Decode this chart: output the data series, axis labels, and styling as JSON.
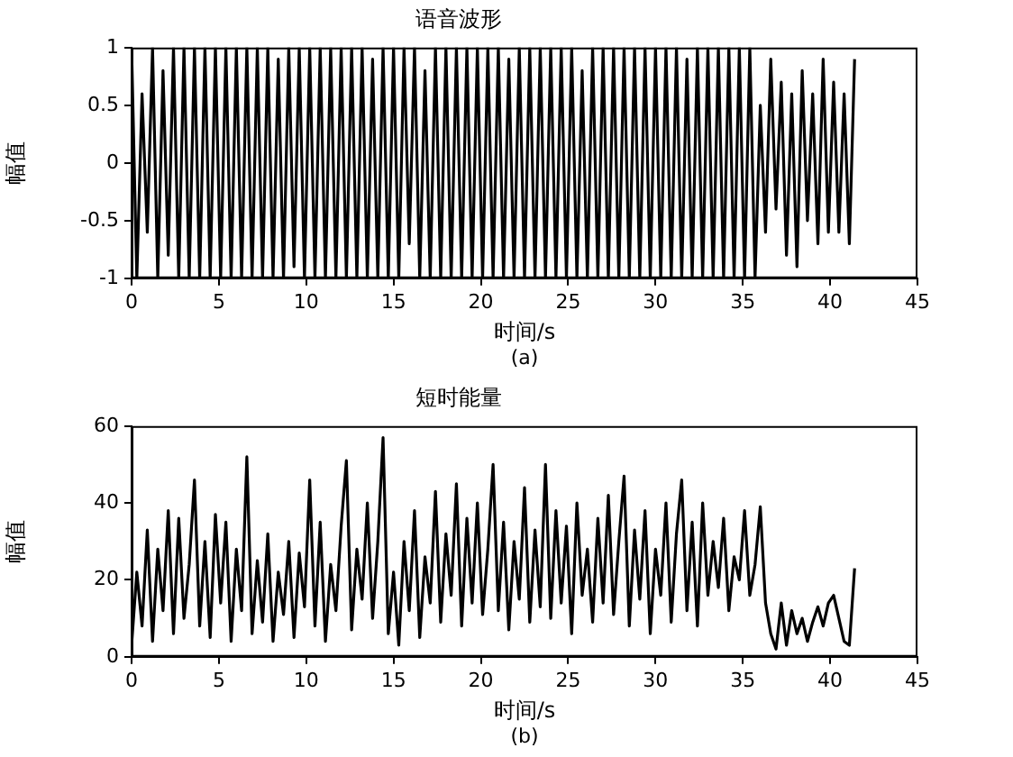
{
  "chart_data": [
    {
      "type": "line",
      "title": "语音波形",
      "xlabel": "时间/s",
      "ylabel": "幅值",
      "annotations": [
        "(a)"
      ],
      "x": [
        0,
        0.3,
        0.6,
        0.9,
        1.2,
        1.5,
        1.8,
        2.1,
        2.4,
        2.7,
        3,
        3.3,
        3.6,
        3.9,
        4.2,
        4.5,
        4.8,
        5.1,
        5.4,
        5.7,
        6,
        6.3,
        6.6,
        6.9,
        7.2,
        7.5,
        7.8,
        8.1,
        8.4,
        8.7,
        9,
        9.3,
        9.6,
        9.9,
        10.2,
        10.5,
        10.8,
        11.1,
        11.4,
        11.7,
        12,
        12.3,
        12.6,
        12.9,
        13.2,
        13.5,
        13.8,
        14.1,
        14.4,
        14.7,
        15,
        15.3,
        15.6,
        15.9,
        16.2,
        16.5,
        16.8,
        17.1,
        17.4,
        17.7,
        18,
        18.3,
        18.6,
        18.9,
        19.2,
        19.5,
        19.8,
        20.1,
        20.4,
        20.7,
        21,
        21.3,
        21.6,
        21.9,
        22.2,
        22.5,
        22.8,
        23.1,
        23.4,
        23.7,
        24,
        24.3,
        24.6,
        24.9,
        25.2,
        25.5,
        25.8,
        26.1,
        26.4,
        26.7,
        27,
        27.3,
        27.6,
        27.9,
        28.2,
        28.5,
        28.8,
        29.1,
        29.4,
        29.7,
        30,
        30.3,
        30.6,
        30.9,
        31.2,
        31.5,
        31.8,
        32.1,
        32.4,
        32.7,
        33,
        33.3,
        33.6,
        33.9,
        34.2,
        34.5,
        34.8,
        35.1,
        35.4,
        35.7,
        36,
        36.3,
        36.6,
        36.9,
        37.2,
        37.5,
        37.8,
        38.1,
        38.4,
        38.7,
        39,
        39.3,
        39.6,
        39.9,
        40.2,
        40.5,
        40.8,
        41.1,
        41.4
      ],
      "series": [
        {
          "color": "#000000",
          "values": [
            1,
            -1,
            0.6,
            -0.6,
            1,
            -1,
            0.8,
            -0.8,
            1,
            -1,
            1,
            -1,
            1,
            -1,
            1,
            -1,
            1,
            -1,
            1,
            -1,
            1,
            -1,
            1,
            -1,
            1,
            -1,
            1,
            -1,
            0.9,
            -1,
            1,
            -0.9,
            1,
            -1,
            1,
            -1,
            1,
            -1,
            1,
            -1,
            1,
            -1,
            1,
            -1,
            1,
            -1,
            0.9,
            -1,
            1,
            -1,
            1,
            -1,
            1,
            -0.7,
            1,
            -1,
            0.8,
            -1,
            1,
            -1,
            1,
            -1,
            1,
            -1,
            1,
            -1,
            1,
            -1,
            1,
            -1,
            1,
            -1,
            0.9,
            -1,
            1,
            -1,
            1,
            -1,
            1,
            -1,
            1,
            -1,
            1,
            -1,
            1,
            -1,
            0.8,
            -1,
            1,
            -1,
            1,
            -1,
            1,
            -1,
            1,
            -1,
            1,
            -1,
            1,
            -1,
            1,
            -1,
            1,
            -1,
            1,
            -1,
            0.9,
            -1,
            1,
            -1,
            1,
            -1,
            1,
            -1,
            1,
            -1,
            1,
            -1,
            1,
            -1,
            0.5,
            -0.6,
            0.9,
            -0.4,
            0.7,
            -0.8,
            0.6,
            -0.9,
            0.8,
            -0.5,
            0.6,
            -0.7,
            0.9,
            -0.6,
            0.7,
            -0.6,
            0.6,
            -0.7,
            0.9
          ]
        }
      ],
      "xlim": [
        0,
        45
      ],
      "xticks": [
        0,
        5,
        10,
        15,
        20,
        25,
        30,
        35,
        40,
        45
      ],
      "ylim": [
        -1,
        1
      ],
      "yticks": [
        -1,
        -0.5,
        0,
        0.5,
        1
      ]
    },
    {
      "type": "line",
      "title": "短时能量",
      "xlabel": "时间/s",
      "ylabel": "幅值",
      "annotations": [
        "(b)"
      ],
      "x": [
        0,
        0.3,
        0.6,
        0.9,
        1.2,
        1.5,
        1.8,
        2.1,
        2.4,
        2.7,
        3,
        3.3,
        3.6,
        3.9,
        4.2,
        4.5,
        4.8,
        5.1,
        5.4,
        5.7,
        6,
        6.3,
        6.6,
        6.9,
        7.2,
        7.5,
        7.8,
        8.1,
        8.4,
        8.7,
        9,
        9.3,
        9.6,
        9.9,
        10.2,
        10.5,
        10.8,
        11.1,
        11.4,
        11.7,
        12,
        12.3,
        12.6,
        12.9,
        13.2,
        13.5,
        13.8,
        14.1,
        14.4,
        14.7,
        15,
        15.3,
        15.6,
        15.9,
        16.2,
        16.5,
        16.8,
        17.1,
        17.4,
        17.7,
        18,
        18.3,
        18.6,
        18.9,
        19.2,
        19.5,
        19.8,
        20.1,
        20.4,
        20.7,
        21,
        21.3,
        21.6,
        21.9,
        22.2,
        22.5,
        22.8,
        23.1,
        23.4,
        23.7,
        24,
        24.3,
        24.6,
        24.9,
        25.2,
        25.5,
        25.8,
        26.1,
        26.4,
        26.7,
        27,
        27.3,
        27.6,
        27.9,
        28.2,
        28.5,
        28.8,
        29.1,
        29.4,
        29.7,
        30,
        30.3,
        30.6,
        30.9,
        31.2,
        31.5,
        31.8,
        32.1,
        32.4,
        32.7,
        33,
        33.3,
        33.6,
        33.9,
        34.2,
        34.5,
        34.8,
        35.1,
        35.4,
        35.7,
        36,
        36.3,
        36.6,
        36.9,
        37.2,
        37.5,
        37.8,
        38.1,
        38.4,
        38.7,
        39,
        39.3,
        39.6,
        39.9,
        40.2,
        40.5,
        40.8,
        41.1,
        41.4
      ],
      "series": [
        {
          "color": "#000000",
          "values": [
            3,
            22,
            8,
            33,
            4,
            28,
            12,
            38,
            6,
            36,
            10,
            24,
            46,
            8,
            30,
            5,
            37,
            14,
            35,
            4,
            28,
            12,
            52,
            6,
            25,
            9,
            32,
            4,
            22,
            11,
            30,
            5,
            27,
            13,
            46,
            8,
            35,
            4,
            24,
            12,
            34,
            51,
            7,
            28,
            15,
            40,
            10,
            30,
            57,
            6,
            22,
            3,
            30,
            12,
            38,
            5,
            26,
            14,
            43,
            9,
            32,
            16,
            45,
            8,
            36,
            14,
            40,
            11,
            28,
            50,
            12,
            35,
            7,
            30,
            15,
            44,
            9,
            33,
            13,
            50,
            10,
            38,
            14,
            34,
            6,
            40,
            16,
            28,
            9,
            36,
            14,
            42,
            11,
            30,
            47,
            8,
            33,
            15,
            38,
            6,
            28,
            16,
            40,
            9,
            32,
            46,
            12,
            35,
            8,
            40,
            16,
            30,
            18,
            36,
            12,
            26,
            20,
            38,
            16,
            24,
            39,
            14,
            6,
            2,
            14,
            3,
            12,
            6,
            10,
            4,
            9,
            13,
            8,
            14,
            16,
            10,
            4,
            3,
            23
          ]
        }
      ],
      "xlim": [
        0,
        45
      ],
      "xticks": [
        0,
        5,
        10,
        15,
        20,
        25,
        30,
        35,
        40,
        45
      ],
      "ylim": [
        0,
        60
      ],
      "yticks": [
        0,
        20,
        40,
        60
      ]
    }
  ]
}
